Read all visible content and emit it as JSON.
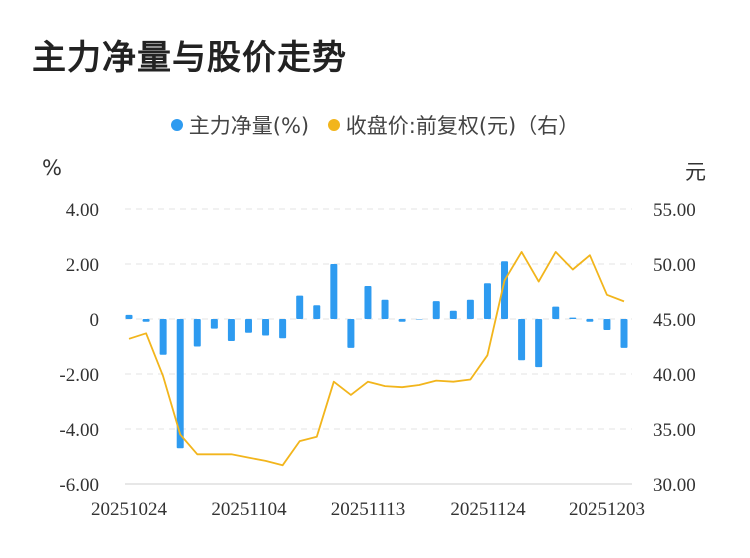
{
  "title": "主力净量与股价走势",
  "legend": {
    "bar_label": "主力净量(%)",
    "line_label": "收盘价:前复权(元)（右）"
  },
  "units": {
    "left": "%",
    "right": "元"
  },
  "colors": {
    "bar": "#2e9bf0",
    "line": "#f2b51c",
    "grid": "#e3e3e3"
  },
  "chart_data": {
    "type": "bar",
    "x_tick_labels": [
      "20251024",
      "20251104",
      "20251113",
      "20251124",
      "20251203"
    ],
    "left_axis": {
      "ylim": [
        -6,
        4
      ],
      "ticks": [
        "4.00",
        "2.00",
        "0",
        "-2.00",
        "-4.00",
        "-6.00"
      ]
    },
    "right_axis": {
      "ylim": [
        30,
        55
      ],
      "ticks": [
        "55.00",
        "50.00",
        "45.00",
        "40.00",
        "35.00",
        "30.00"
      ]
    },
    "series": [
      {
        "name": "主力净量(%)",
        "type": "bar",
        "axis": "left",
        "values": [
          0.15,
          -0.1,
          -1.3,
          -4.7,
          -1.0,
          -0.35,
          -0.8,
          -0.5,
          -0.6,
          -0.7,
          0.85,
          0.5,
          2.0,
          -1.05,
          1.2,
          0.7,
          -0.1,
          0.0,
          0.65,
          0.3,
          0.7,
          1.3,
          2.1,
          -1.5,
          -1.75,
          0.45,
          0.05,
          -0.1,
          -0.4,
          -1.05
        ]
      },
      {
        "name": "收盘价:前复权(元)（右）",
        "type": "line",
        "axis": "right",
        "values": [
          43.2,
          43.7,
          39.8,
          34.5,
          32.7,
          32.7,
          32.7,
          32.4,
          32.1,
          31.7,
          33.9,
          34.3,
          39.3,
          38.1,
          39.3,
          38.9,
          38.8,
          39.0,
          39.4,
          39.3,
          39.5,
          41.7,
          48.5,
          51.1,
          48.4,
          51.1,
          49.5,
          50.8,
          47.2,
          46.6
        ]
      }
    ]
  }
}
